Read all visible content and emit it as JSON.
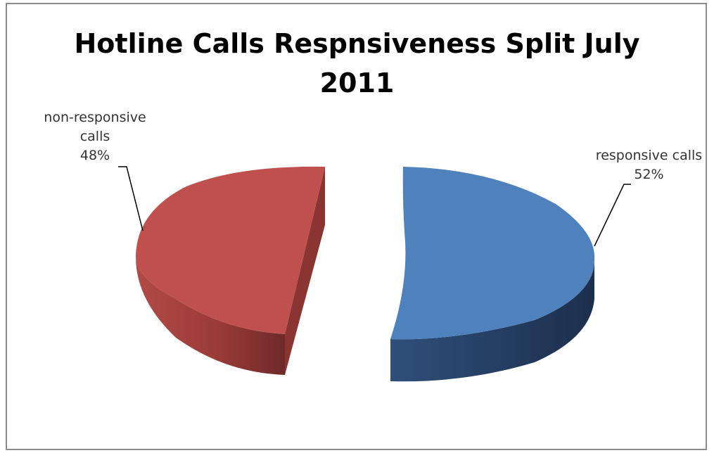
{
  "chart_data": {
    "type": "pie",
    "title_lines": [
      "Hotline Calls Respnsiveness Split July",
      "2011"
    ],
    "slices": [
      {
        "category_lines": [
          "responsive calls"
        ],
        "value": 52,
        "label": "52%",
        "color": "#4F81BD"
      },
      {
        "category_lines": [
          "non-responsive",
          "calls"
        ],
        "value": 48,
        "label": "48%",
        "color": "#C0504D"
      }
    ],
    "exploded": true,
    "style": "3d"
  }
}
